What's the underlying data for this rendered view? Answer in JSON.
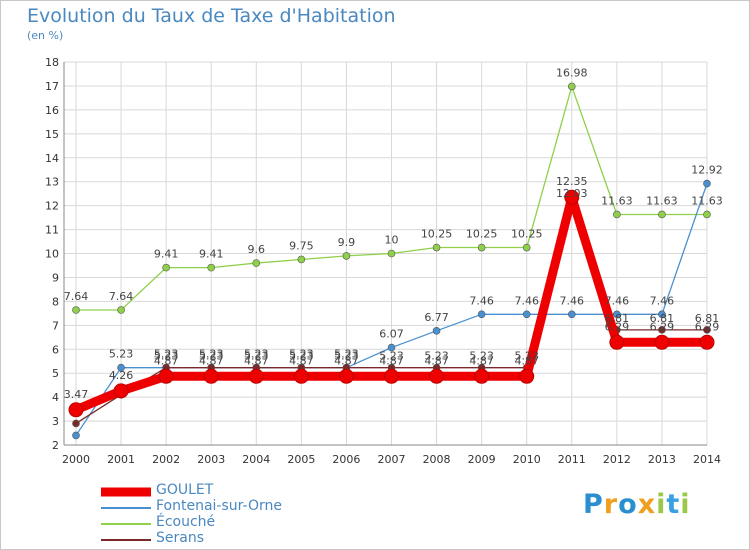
{
  "title": "Evolution du Taux de Taxe d'Habitation",
  "subtitle": "(en %)",
  "logo_text": "Proxiti",
  "chart_data": {
    "type": "line",
    "title": "Evolution du Taux de Taxe d'Habitation",
    "ylabel": "(en %)",
    "xlabel": "",
    "categories": [
      "2000",
      "2001",
      "2002",
      "2003",
      "2004",
      "2005",
      "2006",
      "2007",
      "2008",
      "2009",
      "2010",
      "2011",
      "2012",
      "2013",
      "2014"
    ],
    "ylim": [
      2,
      18
    ],
    "yticks": [
      "2",
      "3",
      "4",
      "5",
      "6",
      "7",
      "8",
      "9",
      "10",
      "11",
      "12",
      "13",
      "14",
      "15",
      "16",
      "17",
      "18"
    ],
    "grid": true,
    "legend_position": "bottom-left",
    "series": [
      {
        "name": "GOULET",
        "color": "#ee0000",
        "values": [
          3.47,
          4.26,
          4.87,
          4.87,
          4.87,
          4.87,
          4.87,
          4.87,
          4.87,
          4.87,
          4.87,
          12.35,
          6.29,
          6.29,
          6.29
        ]
      },
      {
        "name": "Fontenai-sur-Orne",
        "color": "#4a90d0",
        "values": [
          2.4,
          5.23,
          5.23,
          5.23,
          5.23,
          5.23,
          5.23,
          6.07,
          6.77,
          7.46,
          7.46,
          7.46,
          7.46,
          7.46,
          12.92
        ]
      },
      {
        "name": "Écouché",
        "color": "#8fd04a",
        "values": [
          7.64,
          7.64,
          9.41,
          9.41,
          9.6,
          9.75,
          9.9,
          10,
          10.25,
          10.25,
          10.25,
          16.98,
          11.63,
          11.63,
          11.63
        ]
      },
      {
        "name": "Serans",
        "color": "#7a2a2a",
        "values": [
          2.9,
          4.1,
          5.23,
          5.23,
          5.23,
          5.23,
          5.23,
          5.23,
          5.23,
          5.23,
          5.23,
          12.03,
          6.81,
          6.81,
          6.81
        ]
      }
    ],
    "data_labels": {
      "GOULET": [
        "3.47",
        "4.26",
        "4.87",
        "4.87",
        "4.87",
        "4.87",
        "4.87",
        "4.87",
        "4.87",
        "4.87",
        "4.87",
        "12.35",
        "6.29",
        "6.29",
        "6.29"
      ],
      "Fontenai-sur-Orne": [
        "",
        "5.23",
        "5.23",
        "5.23",
        "5.23",
        "5.23",
        "5.23",
        "6.07",
        "6.77",
        "7.46",
        "7.46",
        "7.46",
        "7.46",
        "7.46",
        "12.92"
      ],
      "Écouché": [
        "7.64",
        "7.64",
        "9.41",
        "9.41",
        "9.6",
        "9.75",
        "9.9",
        "10",
        "10.25",
        "10.25",
        "10.25",
        "16.98",
        "11.63",
        "11.63",
        "11.63"
      ],
      "Serans": [
        "",
        "",
        "5.23",
        "5.23",
        "5.23",
        "5.23",
        "5.23",
        "5.23",
        "5.23",
        "5.23",
        "5.23",
        "12.03",
        "6.81",
        "6.81",
        "6.81"
      ]
    }
  }
}
